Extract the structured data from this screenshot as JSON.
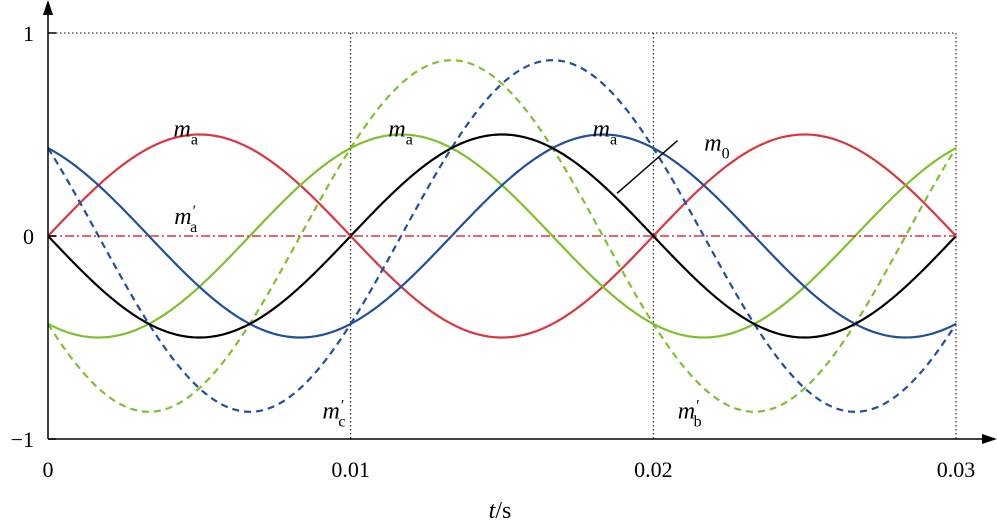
{
  "chart_data": {
    "type": "line",
    "xlabel_var": "t",
    "xlabel_unit": "/s",
    "xlim": [
      0,
      0.03
    ],
    "ylim": [
      -1,
      1
    ],
    "x_ticks": [
      {
        "value": 0,
        "label": "0"
      },
      {
        "value": 0.01,
        "label": "0.01"
      },
      {
        "value": 0.02,
        "label": "0.02"
      },
      {
        "value": 0.03,
        "label": "0.03"
      }
    ],
    "y_ticks": [
      {
        "value": 1,
        "label": "1"
      },
      {
        "value": 0,
        "label": "0"
      },
      {
        "value": -1,
        "label": "−1"
      }
    ],
    "gridlines_x": [
      0.01,
      0.02,
      0.03
    ],
    "gridlines_y": [
      1
    ],
    "frequency_hz": 50,
    "series": [
      {
        "name": "red solid",
        "color": "#d9363e",
        "style": "solid",
        "amplitude": 0.5,
        "phase_deg": 0
      },
      {
        "name": "green solid",
        "color": "#7dc12c",
        "style": "solid",
        "amplitude": 0.5,
        "phase_deg": -120
      },
      {
        "name": "blue solid",
        "color": "#1f4f9e",
        "style": "solid",
        "amplitude": 0.5,
        "phase_deg": 120
      },
      {
        "name": "green dashed",
        "color": "#7dc12c",
        "style": "dashed",
        "amplitude": 0.866,
        "phase_deg": -150
      },
      {
        "name": "blue dashed",
        "color": "#1f4f9e",
        "style": "dashed",
        "amplitude": 0.866,
        "phase_deg": 150
      },
      {
        "name": "m0 black",
        "color": "#000000",
        "style": "solid",
        "amplitude": 0.5,
        "phase_deg": 180
      },
      {
        "name": "m'a",
        "color": "#d9363e",
        "style": "dashdot",
        "amplitude": 0,
        "phase_deg": 0
      }
    ],
    "annotations": [
      {
        "base": "m",
        "sub": "a",
        "prime": false,
        "t": 0.00455,
        "y": 0.49
      },
      {
        "base": "m",
        "sub": "a",
        "prime": false,
        "t": 0.01165,
        "y": 0.49
      },
      {
        "base": "m",
        "sub": "a",
        "prime": false,
        "t": 0.0184,
        "y": 0.49
      },
      {
        "base": "m",
        "sub": "0",
        "prime": false,
        "t": 0.0221,
        "y": 0.42
      },
      {
        "base": "m",
        "sub": "a",
        "prime": true,
        "t": 0.00455,
        "y": 0.06
      },
      {
        "base": "m",
        "sub": "c",
        "prime": true,
        "t": 0.00945,
        "y": -0.9
      },
      {
        "base": "m",
        "sub": "b",
        "prime": true,
        "t": 0.0212,
        "y": -0.9
      }
    ],
    "m0_leader": {
      "from": [
        0.0208,
        0.47
      ],
      "to": [
        0.0188,
        0.21
      ]
    }
  }
}
